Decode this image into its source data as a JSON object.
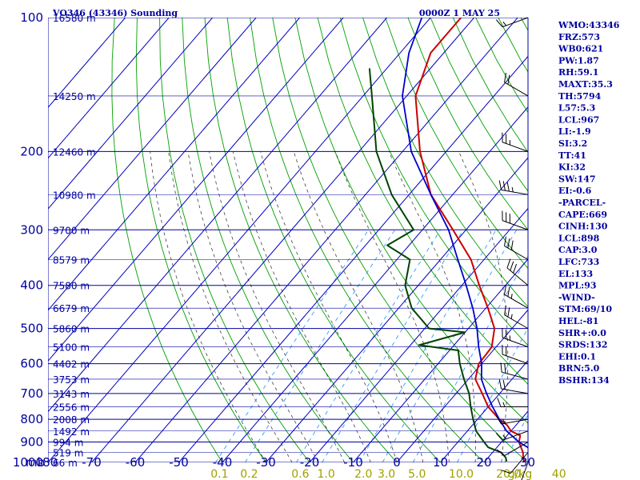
{
  "header": {
    "station": "VO346 (43346) Sounding",
    "time": "0000Z  1 MAY 25"
  },
  "indices": [
    "WMO:43346",
    "FRZ:573",
    "WB0:621",
    "PW:1.87",
    "RH:59.1",
    "MAXT:35.3",
    "TH:5794",
    "L57:5.3",
    "LCL:967",
    "LI:-1.9",
    "SI:3.2",
    "TT:41",
    "KI:32",
    "SW:147",
    "EI:-0.6",
    "-PARCEL-",
    "CAPE:669",
    "CINH:130",
    "LCL:898",
    "CAP:3.0",
    "LFC:733",
    "EL:133",
    "MPL:93",
    "-WIND-",
    "STM:69/10",
    "HEL:-81",
    "SHR+:0.0",
    "SRDS:132",
    "EHI:0.1",
    "BRN:5.0",
    "BSHR:134"
  ],
  "colors": {
    "grid": "#0000a0",
    "isotherm": "#0000c0",
    "dry_adiabat": "#00a000",
    "moist_adiabat": "#000000",
    "mixing_ratio": "#3399ff",
    "temperature": "#cc0000",
    "dewpoint": "#004400",
    "parcel": "#0000cc",
    "wind_label": "#a0a000"
  },
  "chart_data": {
    "type": "skew-t",
    "pressure_levels": [
      100,
      200,
      300,
      400,
      500,
      600,
      700,
      800,
      900,
      1000
    ],
    "pressure_range": [
      100,
      1000
    ],
    "log_pressure": true,
    "pressure_unit_label": "mb",
    "temperature_ticks": [
      -80,
      -70,
      -60,
      -50,
      -40,
      -30,
      -20,
      -10,
      0,
      10,
      20,
      30
    ],
    "temperature_range": [
      -80,
      30
    ],
    "mixing_ratio_ticks": [
      "0.1",
      "0.2",
      "0.6",
      "1.0",
      "2.0",
      "3.0",
      "5.0",
      "10.0",
      "20.0",
      "40"
    ],
    "mixing_ratio_unit": "g/kg",
    "height_labels": [
      {
        "p": 100,
        "label": "16580 m"
      },
      {
        "p": 150,
        "label": "14250 m"
      },
      {
        "p": 200,
        "label": "12460 m"
      },
      {
        "p": 250,
        "label": "10980 m"
      },
      {
        "p": 300,
        "label": "9700 m"
      },
      {
        "p": 350,
        "label": "8579 m"
      },
      {
        "p": 400,
        "label": "7580 m"
      },
      {
        "p": 450,
        "label": "6679 m"
      },
      {
        "p": 500,
        "label": "5860 m"
      },
      {
        "p": 550,
        "label": "5100 m"
      },
      {
        "p": 600,
        "label": "4402 m"
      },
      {
        "p": 650,
        "label": "3753 m"
      },
      {
        "p": 700,
        "label": "3143 m"
      },
      {
        "p": 750,
        "label": "2556 m"
      },
      {
        "p": 800,
        "label": "2008 m"
      },
      {
        "p": 850,
        "label": "1492 m"
      },
      {
        "p": 900,
        "label": "994 m"
      },
      {
        "p": 950,
        "label": "519 m"
      },
      {
        "p": 1000,
        "label": "66 m"
      }
    ],
    "series": [
      {
        "key": "temperature",
        "points": [
          [
            995,
            29
          ],
          [
            975,
            28
          ],
          [
            950,
            27
          ],
          [
            900,
            24
          ],
          [
            870,
            23
          ],
          [
            850,
            20
          ],
          [
            825,
            18
          ],
          [
            800,
            15
          ],
          [
            750,
            10
          ],
          [
            700,
            6
          ],
          [
            650,
            1.6
          ],
          [
            600,
            -0.7
          ],
          [
            575,
            -0.8
          ],
          [
            550,
            -1
          ],
          [
            500,
            -4
          ],
          [
            450,
            -9.5
          ],
          [
            400,
            -16
          ],
          [
            350,
            -23
          ],
          [
            300,
            -33
          ],
          [
            250,
            -45
          ],
          [
            200,
            -56
          ],
          [
            150,
            -68
          ],
          [
            120,
            -73
          ],
          [
            100,
            -73
          ]
        ]
      },
      {
        "key": "dewpoint",
        "points": [
          [
            995,
            25
          ],
          [
            975,
            24
          ],
          [
            950,
            22
          ],
          [
            925,
            18
          ],
          [
            900,
            16
          ],
          [
            850,
            12
          ],
          [
            800,
            9
          ],
          [
            750,
            6
          ],
          [
            700,
            3
          ],
          [
            650,
            -1
          ],
          [
            600,
            -5
          ],
          [
            560,
            -8
          ],
          [
            545,
            -18
          ],
          [
            510,
            -10
          ],
          [
            500,
            -19
          ],
          [
            450,
            -27
          ],
          [
            400,
            -33
          ],
          [
            350,
            -37
          ],
          [
            325,
            -45
          ],
          [
            300,
            -42
          ],
          [
            250,
            -54
          ],
          [
            200,
            -66
          ],
          [
            150,
            -78
          ],
          [
            130,
            -84
          ]
        ]
      },
      {
        "key": "parcel",
        "points": [
          [
            995,
            33
          ],
          [
            975,
            32
          ],
          [
            950,
            30
          ],
          [
            900,
            24
          ],
          [
            850,
            19
          ],
          [
            800,
            15
          ],
          [
            750,
            11
          ],
          [
            700,
            7
          ],
          [
            650,
            3
          ],
          [
            600,
            0
          ],
          [
            550,
            -4
          ],
          [
            500,
            -8
          ],
          [
            450,
            -13
          ],
          [
            400,
            -19
          ],
          [
            350,
            -26
          ],
          [
            300,
            -34
          ],
          [
            250,
            -45
          ],
          [
            200,
            -58
          ],
          [
            150,
            -71
          ],
          [
            120,
            -78
          ],
          [
            100,
            -82
          ]
        ]
      }
    ],
    "winds": [
      {
        "p": 1000,
        "dir": 200,
        "spd": 5
      },
      {
        "p": 950,
        "dir": 220,
        "spd": 10
      },
      {
        "p": 900,
        "dir": 240,
        "spd": 10
      },
      {
        "p": 850,
        "dir": 250,
        "spd": 15
      },
      {
        "p": 800,
        "dir": 260,
        "spd": 15
      },
      {
        "p": 750,
        "dir": 270,
        "spd": 15
      },
      {
        "p": 700,
        "dir": 280,
        "spd": 20
      },
      {
        "p": 650,
        "dir": 285,
        "spd": 20
      },
      {
        "p": 600,
        "dir": 290,
        "spd": 20
      },
      {
        "p": 550,
        "dir": 290,
        "spd": 25
      },
      {
        "p": 500,
        "dir": 300,
        "spd": 25
      },
      {
        "p": 450,
        "dir": 300,
        "spd": 25
      },
      {
        "p": 400,
        "dir": 310,
        "spd": 30
      },
      {
        "p": 350,
        "dir": 300,
        "spd": 30
      },
      {
        "p": 300,
        "dir": 290,
        "spd": 30
      },
      {
        "p": 250,
        "dir": 280,
        "spd": 35
      },
      {
        "p": 200,
        "dir": 290,
        "spd": 25
      },
      {
        "p": 150,
        "dir": 300,
        "spd": 20
      },
      {
        "p": 100,
        "dir": 250,
        "spd": 15
      }
    ]
  }
}
